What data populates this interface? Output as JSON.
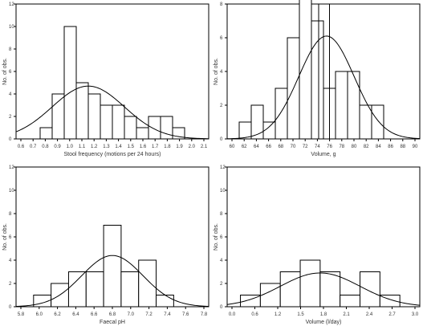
{
  "chart_data": [
    {
      "type": "bar",
      "ylabel": "No. of obs.",
      "xlabel": "Stool frequency (motions per 24 hours)",
      "x_ticks": [
        "0.6",
        "0.7",
        "0.8",
        "0.9",
        "1.0",
        "1.1",
        "1.2",
        "1.3",
        "1.4",
        "1.5",
        "1.6",
        "1.7",
        "1.8",
        "1.9",
        "2.0",
        "2.1"
      ],
      "bins": [
        [
          0.75,
          0.85
        ],
        [
          0.85,
          0.95
        ],
        [
          0.95,
          1.05
        ],
        [
          1.05,
          1.15
        ],
        [
          1.15,
          1.25
        ],
        [
          1.25,
          1.35
        ],
        [
          1.35,
          1.45
        ],
        [
          1.45,
          1.55
        ],
        [
          1.55,
          1.65
        ],
        [
          1.65,
          1.75
        ],
        [
          1.75,
          1.85
        ],
        [
          1.85,
          1.95
        ]
      ],
      "values": [
        1,
        4,
        10,
        5,
        4,
        3,
        3,
        2,
        1,
        2,
        2,
        1
      ],
      "xlim": [
        0.55,
        2.15
      ],
      "ylim": [
        0,
        12
      ],
      "y_ticks": [
        0,
        2,
        4,
        6,
        8,
        10,
        12
      ],
      "curve": {
        "mean": 1.15,
        "sd": 0.3,
        "peak": 4.7
      },
      "vlines": []
    },
    {
      "type": "bar",
      "ylabel": "No. of obs.",
      "xlabel": "Volume, g",
      "x_ticks": [
        "60",
        "62",
        "64",
        "66",
        "68",
        "70",
        "72",
        "74",
        "76",
        "78",
        "80",
        "82",
        "84",
        "86",
        "88",
        "90"
      ],
      "bins": [
        [
          61,
          63
        ],
        [
          63,
          65
        ],
        [
          65,
          67
        ],
        [
          67,
          69
        ],
        [
          69,
          71
        ],
        [
          71,
          73
        ],
        [
          73,
          75
        ],
        [
          75,
          77
        ],
        [
          77,
          79
        ],
        [
          79,
          81
        ],
        [
          81,
          83
        ],
        [
          83,
          85
        ]
      ],
      "values": [
        1,
        2,
        1,
        3,
        6,
        9,
        7,
        3,
        4,
        4,
        2,
        2
      ],
      "xlim": [
        59,
        91
      ],
      "ylim": [
        0,
        8
      ],
      "y_ticks": [
        0,
        2,
        4,
        6,
        8
      ],
      "curve": {
        "mean": 75.5,
        "sd": 4.6,
        "peak": 6.1
      },
      "vlines": [
        74.2,
        76.0
      ]
    },
    {
      "type": "bar",
      "ylabel": "No. of obs.",
      "xlabel": "Faecal pH",
      "x_ticks": [
        "5.8",
        "6.0",
        "6.2",
        "6.4",
        "6.6",
        "6.8",
        "7.0",
        "7.2",
        "7.4",
        "7.6",
        "7.8"
      ],
      "bins": [
        [
          5.9,
          6.1
        ],
        [
          6.1,
          6.3
        ],
        [
          6.3,
          6.5
        ],
        [
          6.5,
          6.7
        ],
        [
          6.7,
          6.9
        ],
        [
          6.9,
          7.1
        ],
        [
          7.1,
          7.3
        ],
        [
          7.3,
          7.5
        ]
      ],
      "values": [
        1,
        2,
        3,
        3,
        7,
        3,
        4,
        1
      ],
      "xlim": [
        5.7,
        7.9
      ],
      "ylim": [
        0,
        12
      ],
      "y_ticks": [
        0,
        2,
        4,
        6,
        8,
        10,
        12
      ],
      "curve": {
        "mean": 6.8,
        "sd": 0.35,
        "peak": 4.4
      },
      "vlines": []
    },
    {
      "type": "bar",
      "ylabel": "No. of obs.",
      "xlabel": "Volume (l/day)",
      "x_ticks": [
        "0.0",
        "0.6",
        "1.2",
        "1.5",
        "1.8",
        "2.1",
        "2.4",
        "2.7",
        "3.0"
      ],
      "bins": [
        [
          0.3,
          0.6
        ],
        [
          0.6,
          0.9
        ],
        [
          0.9,
          1.2
        ],
        [
          1.2,
          1.5
        ],
        [
          1.5,
          1.8
        ],
        [
          1.8,
          2.1
        ],
        [
          2.1,
          2.4
        ],
        [
          2.4,
          2.7
        ]
      ],
      "values": [
        1,
        2,
        3,
        4,
        3,
        1,
        3,
        1
      ],
      "xlim": [
        0.1,
        3.0
      ],
      "ylim": [
        0,
        12
      ],
      "y_ticks": [
        0,
        2,
        4,
        6,
        8,
        10,
        12
      ],
      "curve": {
        "mean": 1.5,
        "sd": 0.6,
        "peak": 2.9
      },
      "vlines": []
    }
  ]
}
